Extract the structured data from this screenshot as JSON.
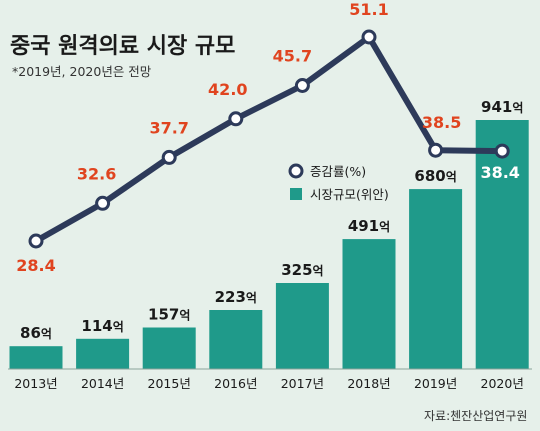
{
  "title": "중국 원격의료 시장 규모",
  "subtitle": "*2019년, 2020년은 전망",
  "source": "자료:첸잔산업연구원",
  "legend": [
    {
      "label": "증감률(%)",
      "type": "line"
    },
    {
      "label": "시장규모(위안)",
      "type": "bar"
    }
  ],
  "colors": {
    "bar": "#1f9a8a",
    "line": "#2d3a5a",
    "rate_text": "#e0441f",
    "background": "#e6f0ea"
  },
  "chart_data": {
    "type": "bar",
    "categories": [
      "2013년",
      "2014년",
      "2015년",
      "2016년",
      "2017년",
      "2018년",
      "2019년",
      "2020년"
    ],
    "series": [
      {
        "name": "시장규모(위안)",
        "type": "bar",
        "values": [
          86,
          114,
          157,
          223,
          325,
          491,
          680,
          941
        ],
        "unit": "억"
      },
      {
        "name": "증감률(%)",
        "type": "line",
        "values": [
          28.4,
          32.6,
          37.7,
          42.0,
          45.7,
          51.1,
          38.5,
          38.4
        ]
      }
    ],
    "bar_labels": [
      "86억",
      "114억",
      "157억",
      "223억",
      "325억",
      "491억",
      "680억",
      "941억"
    ],
    "rate_labels": [
      "28.4",
      "32.6",
      "37.7",
      "42.0",
      "45.7",
      "51.1",
      "38.5",
      "38.4"
    ],
    "title": "중국 원격의료 시장 규모",
    "xlabel": "",
    "ylabel": "",
    "grid": false,
    "legend_position": "middle-right"
  }
}
